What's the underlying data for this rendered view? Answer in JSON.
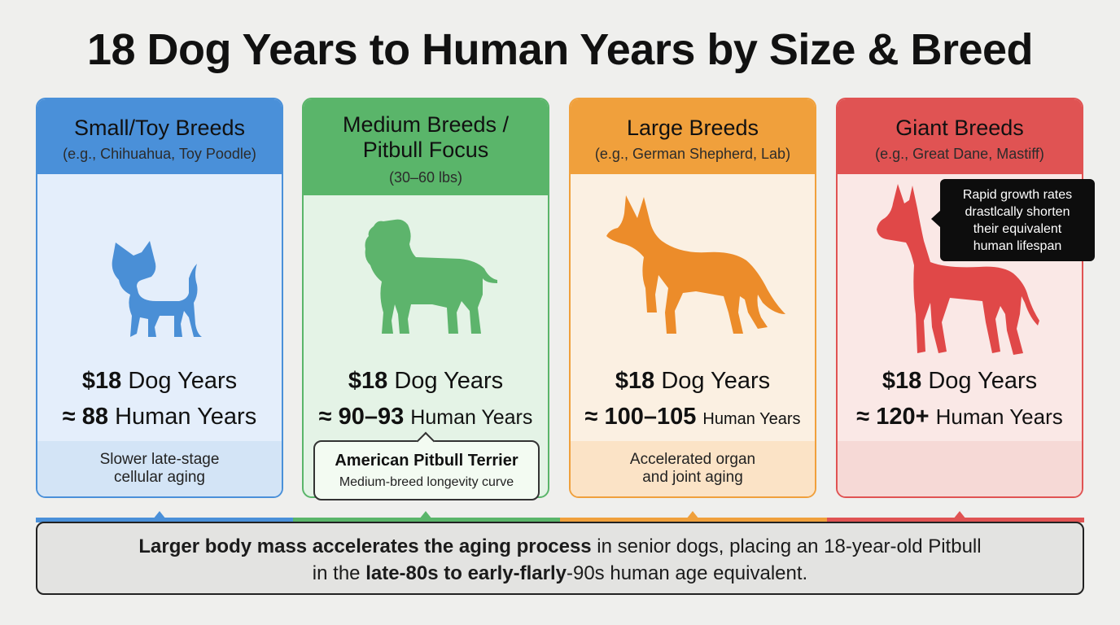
{
  "title": "18 Dog Years to Human Years by Size & Breed",
  "cards": [
    {
      "title": "Small/Toy Breeds",
      "subtitle": "(e.g., Chihuahua, Toy Poodle)",
      "dog_years_num": "$18",
      "dog_years_label": "Dog Years",
      "human_years_num": "≈ 88",
      "human_years_label": "Human Years",
      "note_lines": [
        "Slower late-stage",
        "cellular aging"
      ],
      "color": "#4a90d9",
      "icon": "chihuahua-silhouette-icon"
    },
    {
      "title_lines": [
        "Medium Breeds /",
        "Pitbull Focus"
      ],
      "subtitle": "(30–60 lbs)",
      "dog_years_num": "$18",
      "dog_years_label": "Dog Years",
      "human_years_num": "≈ 90–93",
      "human_years_label": "Human Years",
      "callout_title": "American Pitbull Terrier",
      "callout_sub": "Medium-breed longevity curve",
      "color": "#5ab56a",
      "icon": "pitbull-silhouette-icon"
    },
    {
      "title": "Large Breeds",
      "subtitle": "(e.g., German Shepherd, Lab)",
      "dog_years_num": "$18",
      "dog_years_label": "Dog Years",
      "human_years_num": "≈ 100–105",
      "human_years_label": "Human Years",
      "note_lines": [
        "Accelerated organ",
        "and joint aging"
      ],
      "color": "#f0a03c",
      "icon": "german-shepherd-silhouette-icon"
    },
    {
      "title": "Giant Breeds",
      "subtitle": "(e.g., Great Dane, Mastiff)",
      "dog_years_num": "$18",
      "dog_years_label": "Dog Years",
      "human_years_num": "≈ 120+",
      "human_years_label": "Human Years",
      "tooltip_lines": [
        "Rapid growth rates",
        "drastlcally shorten",
        "their equivalent",
        "human lifespan"
      ],
      "color": "#e05353",
      "icon": "great-dane-silhouette-icon"
    }
  ],
  "footer": {
    "line1_bold": "Larger body mass accelerates the aging process",
    "line1_rest": " in senior dogs, placing an 18-year-old Pitbull",
    "line2_pre": "in the ",
    "line2_bold": "late-80s to early-flarly",
    "line2_rest": "-90s human age equivalent."
  }
}
